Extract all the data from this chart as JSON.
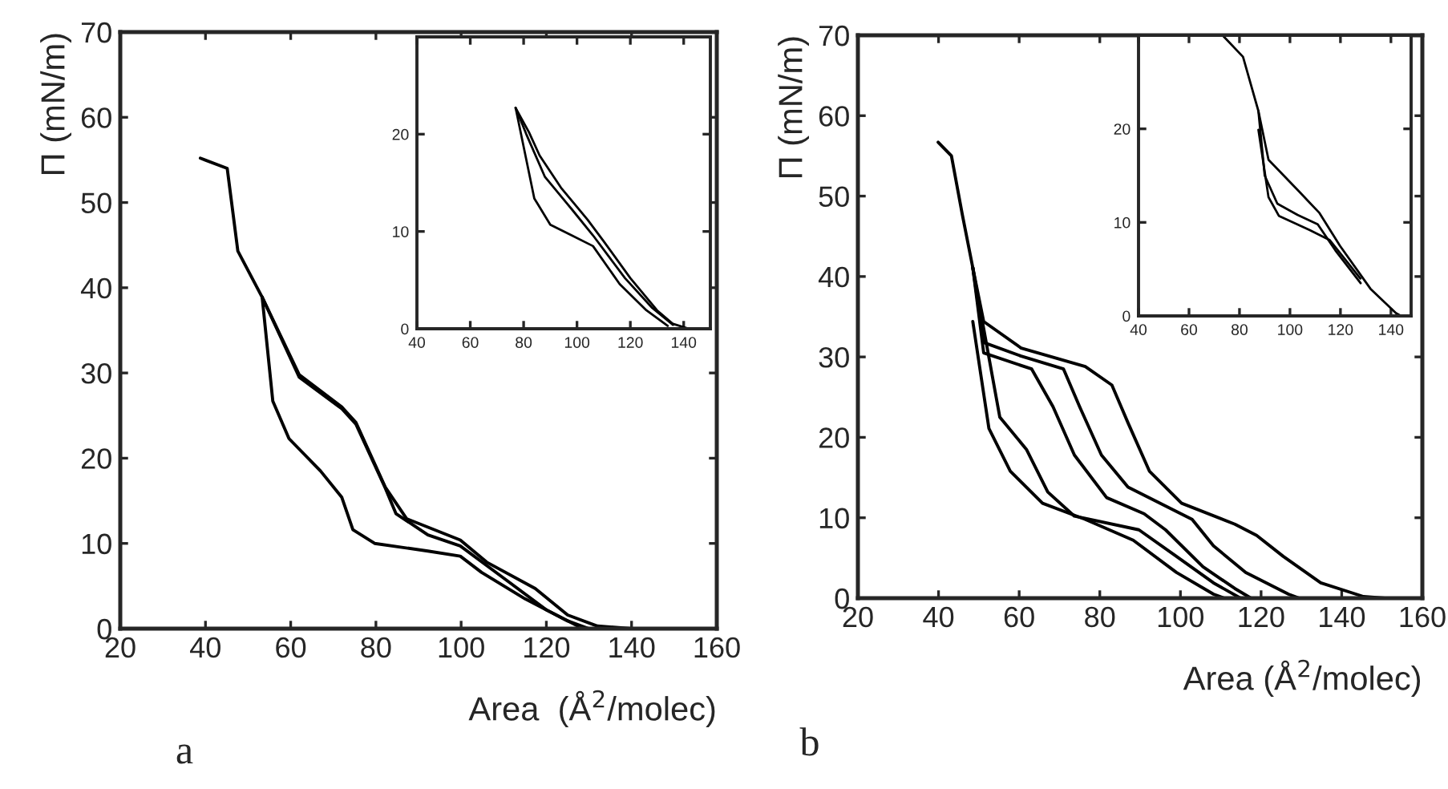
{
  "chart_data": [
    {
      "type": "line",
      "xlabel": "Area  (Å$^{2}$/molec)",
      "ylabel": "Π (mN/m)",
      "annotations": [
        "a"
      ],
      "xlim": [
        20,
        160
      ],
      "ylim": [
        0,
        70
      ],
      "xticks": [
        20,
        40,
        60,
        80,
        100,
        120,
        140,
        160
      ],
      "yticks": [
        0,
        10,
        20,
        30,
        40,
        50,
        60,
        70
      ],
      "grid": false,
      "series": [
        {
          "color": "#000000",
          "x": [
            38.8,
            45.1,
            47.6,
            53.3,
            62,
            72,
            75.3,
            82.2,
            87.2,
            99.8,
            106,
            117.4,
            125,
            132,
            140,
            150
          ],
          "values": [
            55.2,
            54,
            44.3,
            38.9,
            29.8,
            26,
            24.2,
            16.6,
            12.9,
            10.4,
            7.8,
            4.7,
            1.6,
            0.3,
            0,
            0
          ]
        },
        {
          "color": "#000000",
          "x": [
            53.3,
            62,
            72,
            75.3,
            82.2,
            84.7,
            92.2,
            99.8,
            109.8,
            120,
            127.4
          ],
          "values": [
            38.9,
            29.5,
            25.8,
            24,
            16.5,
            13.5,
            11,
            9.7,
            6,
            2.2,
            0.3
          ]
        },
        {
          "color": "#000000",
          "x": [
            53.3,
            55.8,
            59.6,
            67,
            72,
            74.6,
            79.7,
            92.2,
            99.8,
            104.8,
            115,
            125,
            130
          ],
          "values": [
            38.9,
            26.7,
            22.3,
            18.5,
            15.4,
            11.6,
            10,
            9.1,
            8.5,
            6.6,
            3.5,
            0.9,
            0
          ]
        }
      ]
    },
    {
      "type": "line",
      "xlim": [
        40,
        150
      ],
      "ylim": [
        0,
        30
      ],
      "xticks": [
        40,
        60,
        80,
        100,
        120,
        140
      ],
      "yticks": [
        0,
        10,
        20
      ],
      "grid": false,
      "series": [
        {
          "color": "#000000",
          "x": [
            77,
            82,
            86,
            94,
            104,
            110,
            120,
            130,
            136,
            142
          ],
          "values": [
            22.7,
            20.2,
            17.8,
            14.5,
            11.2,
            9,
            5.2,
            1.9,
            0.5,
            0
          ]
        },
        {
          "color": "#000000",
          "x": [
            77,
            81,
            88,
            98,
            106,
            118,
            128,
            136
          ],
          "values": [
            22.7,
            20,
            15.6,
            12.3,
            9.6,
            5.2,
            2.2,
            0.4
          ]
        },
        {
          "color": "#000000",
          "x": [
            77,
            84,
            90,
            98,
            106,
            116,
            126,
            134
          ],
          "values": [
            22.7,
            13.4,
            10.7,
            9.6,
            8.5,
            4.6,
            1.9,
            0.3
          ]
        }
      ]
    },
    {
      "type": "line",
      "xlabel": "Area (Å$^{2}$/molec)",
      "ylabel": "Π (mN/m)",
      "annotations": [
        "b"
      ],
      "xlim": [
        20,
        160
      ],
      "ylim": [
        0,
        70
      ],
      "xticks": [
        20,
        40,
        60,
        80,
        100,
        120,
        140,
        160
      ],
      "yticks": [
        0,
        10,
        20,
        30,
        40,
        50,
        60,
        70
      ],
      "grid": false,
      "series": [
        {
          "color": "#000000",
          "x": [
            39.9,
            43.2,
            45.9,
            48.5,
            51.2,
            60.5,
            76.4,
            83,
            87,
            92.3,
            100.3,
            113.5,
            118.9,
            125.5,
            134.8,
            145.4,
            150.7
          ],
          "values": [
            56.7,
            55,
            47.7,
            41.1,
            34.4,
            31.1,
            28.8,
            26.5,
            21.8,
            15.8,
            11.8,
            9.2,
            7.8,
            5.2,
            1.9,
            0.2,
            0
          ]
        },
        {
          "color": "#000000",
          "x": [
            48.5,
            51.2,
            60.5,
            71,
            75,
            80.4,
            87,
            102.9,
            108.2,
            116.2,
            126.8,
            129.5
          ],
          "values": [
            41.1,
            31.8,
            30.1,
            28.5,
            23.8,
            17.8,
            13.8,
            9.8,
            6.5,
            3.2,
            0.5,
            0
          ]
        },
        {
          "color": "#000000",
          "x": [
            48.5,
            51.2,
            63.1,
            68.4,
            73.7,
            81.7,
            91,
            96.3,
            105.6,
            113.5,
            117.5
          ],
          "values": [
            41.1,
            30.5,
            28.5,
            23.8,
            17.8,
            12.5,
            10.5,
            8.5,
            3.9,
            1.2,
            0
          ]
        },
        {
          "color": "#000000",
          "x": [
            48.5,
            49.9,
            55.2,
            61.8,
            67.1,
            73.7,
            89.7,
            99,
            108.2,
            114.9
          ],
          "values": [
            41.1,
            37.1,
            22.5,
            18.5,
            13.2,
            10.2,
            8.5,
            5.2,
            1.9,
            0
          ]
        },
        {
          "color": "#000000",
          "x": [
            48.5,
            52.5,
            57.8,
            65.8,
            76.4,
            88.3,
            99,
            108.2,
            110.9
          ],
          "values": [
            34.4,
            21.1,
            15.8,
            11.8,
            9.8,
            7.2,
            3.2,
            0.5,
            0
          ]
        }
      ]
    },
    {
      "type": "line",
      "xlim": [
        40,
        148
      ],
      "ylim": [
        0,
        30
      ],
      "xticks": [
        40,
        60,
        80,
        100,
        120,
        140
      ],
      "yticks": [
        0,
        10,
        20
      ],
      "grid": false,
      "series": [
        {
          "color": "#000000",
          "x": [
            73.3,
            81.4,
            87.5,
            91.5,
            103.6,
            111.7,
            119.8,
            131.9,
            142,
            144
          ],
          "values": [
            30,
            27.7,
            21.9,
            16.7,
            13.3,
            11,
            7.5,
            2.9,
            0.3,
            0
          ]
        },
        {
          "color": "#000000",
          "x": [
            87.5,
            90,
            95,
            103,
            111,
            118,
            128
          ],
          "values": [
            21.9,
            15,
            12,
            10.8,
            9.8,
            7,
            3.5
          ]
        },
        {
          "color": "#000000",
          "x": [
            87.5,
            91.5,
            95.6,
            107.7,
            115.8,
            127.9
          ],
          "values": [
            19.9,
            12.7,
            10.7,
            9.2,
            8.1,
            4
          ]
        }
      ]
    }
  ]
}
